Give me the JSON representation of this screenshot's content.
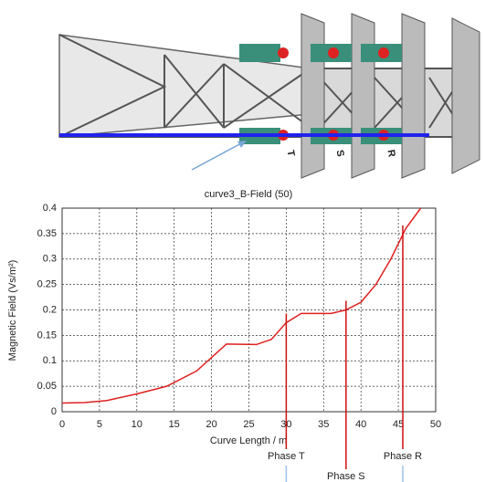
{
  "image": {
    "labels": [
      "T",
      "S",
      "R"
    ]
  },
  "chart_data": {
    "type": "line",
    "title": "curve3_B-Field (50)",
    "x_label": "Curve Length / m",
    "y_label": "Magnetic Field (Vs/m²)",
    "x": [
      0,
      3,
      6,
      10,
      14,
      18,
      22,
      26,
      28,
      30,
      32,
      36,
      38,
      40,
      42,
      44,
      46,
      48
    ],
    "series": [
      {
        "color": "#e02020",
        "values": [
          0.017,
          0.018,
          0.022,
          0.035,
          0.05,
          0.08,
          0.133,
          0.132,
          0.142,
          0.175,
          0.193,
          0.193,
          0.2,
          0.215,
          0.25,
          0.3,
          0.36,
          0.4
        ]
      }
    ],
    "xlim": [
      0,
      50
    ],
    "ylim": [
      0,
      0.4
    ],
    "xticks": [
      0,
      5,
      10,
      15,
      20,
      25,
      30,
      35,
      40,
      45,
      50
    ],
    "yticks": [
      0,
      0.05,
      0.1,
      0.15,
      0.2,
      0.25,
      0.3,
      0.35,
      0.4
    ],
    "grid": true,
    "annotations": [
      {
        "text": "Phase T",
        "x": 30
      },
      {
        "text": "Phase S",
        "x": 38
      },
      {
        "text": "Phase R",
        "x": 45.6
      }
    ]
  }
}
